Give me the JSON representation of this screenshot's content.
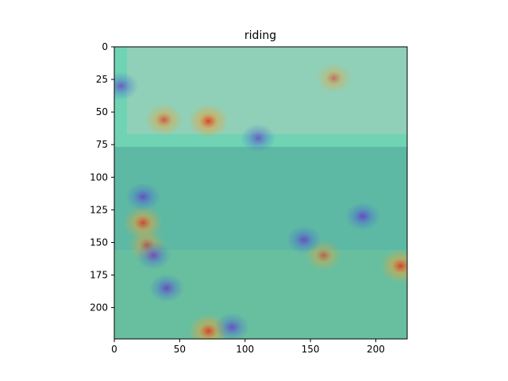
{
  "chart_data": {
    "type": "heatmap",
    "title": "riding",
    "xlabel": "",
    "ylabel": "",
    "xlim": [
      0,
      224
    ],
    "ylim": [
      224,
      0
    ],
    "x_ticks": [
      0,
      50,
      100,
      150,
      200
    ],
    "y_ticks": [
      0,
      25,
      50,
      75,
      100,
      125,
      150,
      175,
      200
    ],
    "colormap": "jet",
    "overlay_alpha": 0.5,
    "grid": false,
    "image_description_free": true,
    "hotspots": [
      {
        "x": 72,
        "y": 57,
        "level": 0.95
      },
      {
        "x": 38,
        "y": 56,
        "level": 0.8
      },
      {
        "x": 168,
        "y": 24,
        "level": 0.65
      },
      {
        "x": 22,
        "y": 135,
        "level": 0.9
      },
      {
        "x": 25,
        "y": 152,
        "level": 0.75
      },
      {
        "x": 72,
        "y": 218,
        "level": 0.95
      },
      {
        "x": 219,
        "y": 168,
        "level": 0.95
      },
      {
        "x": 160,
        "y": 160,
        "level": 0.7
      }
    ],
    "coldspots": [
      {
        "x": 22,
        "y": 115,
        "level": 0.1
      },
      {
        "x": 40,
        "y": 185,
        "level": 0.05
      },
      {
        "x": 190,
        "y": 130,
        "level": 0.05
      },
      {
        "x": 145,
        "y": 148,
        "level": 0.1
      },
      {
        "x": 30,
        "y": 160,
        "level": 0.1
      },
      {
        "x": 90,
        "y": 215,
        "level": 0.1
      },
      {
        "x": 110,
        "y": 70,
        "level": 0.15
      },
      {
        "x": 5,
        "y": 30,
        "level": 0.15
      }
    ],
    "colors": {
      "base": "#6fd3b4",
      "hot": "#e0331f",
      "warm": "#e8a33a",
      "cold": "#6a2fc8",
      "axis": "#000000",
      "sky": "#a8c8c0",
      "ship": "#b7cdbc",
      "water": "#3d8a86"
    }
  }
}
